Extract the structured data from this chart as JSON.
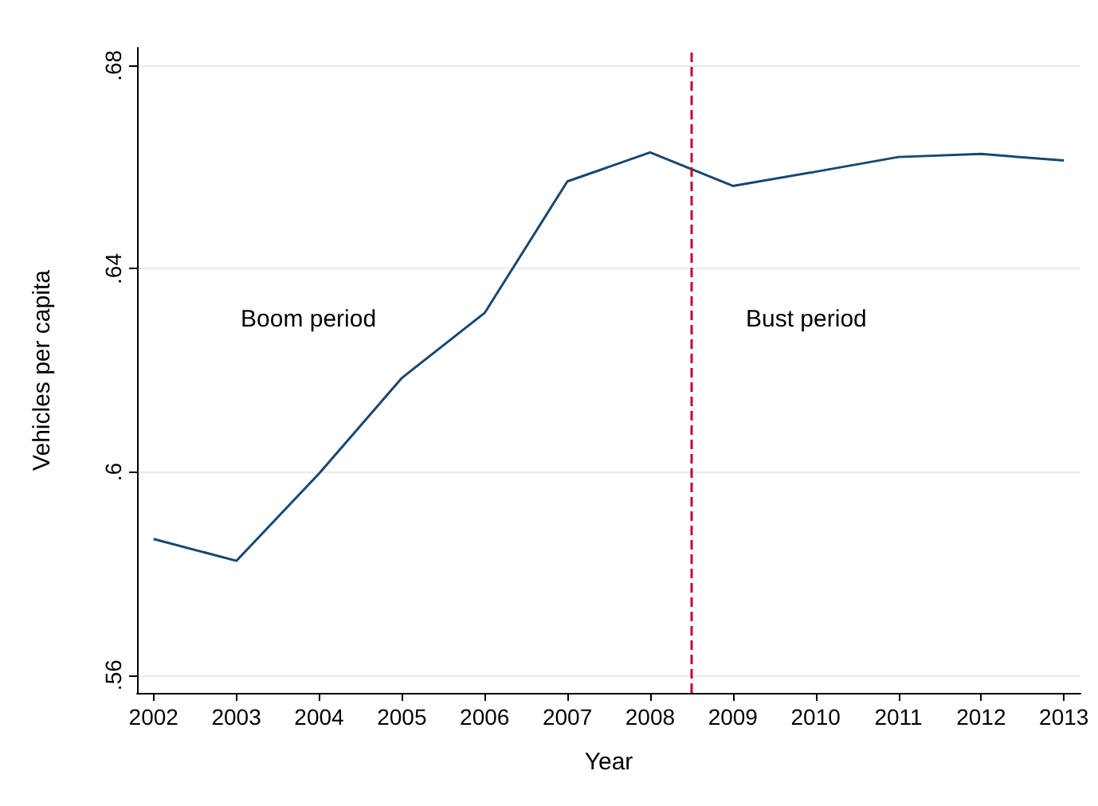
{
  "chart_data": {
    "type": "line",
    "xlabel": "Year",
    "ylabel": "Vehicles per capita",
    "x": [
      2002,
      2003,
      2004,
      2005,
      2006,
      2007,
      2008,
      2009,
      2010,
      2011,
      2012,
      2013
    ],
    "series": [
      {
        "color": "#1a476f",
        "values": [
          0.5868,
          0.5825,
          0.5997,
          0.6185,
          0.6313,
          0.6572,
          0.6629,
          0.6563,
          0.6591,
          0.662,
          0.6626,
          0.6613
        ]
      }
    ],
    "xlim": [
      2001.8,
      2013.2
    ],
    "xticks": [
      2002,
      2003,
      2004,
      2005,
      2006,
      2007,
      2008,
      2009,
      2010,
      2011,
      2012,
      2013
    ],
    "ylim": [
      0.5565,
      0.6835
    ],
    "yticks": [
      {
        "value": 0.56,
        "label": ".56"
      },
      {
        "value": 0.6,
        "label": ".6"
      },
      {
        "value": 0.64,
        "label": ".64"
      },
      {
        "value": 0.68,
        "label": ".68"
      }
    ],
    "grid": "y",
    "marker": "none",
    "line_style": "solid",
    "ref_lines": [
      {
        "axis": "x",
        "value": 2008.5,
        "color": "#c10534",
        "line_style": "dashed"
      }
    ],
    "annotations": [
      "Boom period",
      "Bust period"
    ]
  }
}
